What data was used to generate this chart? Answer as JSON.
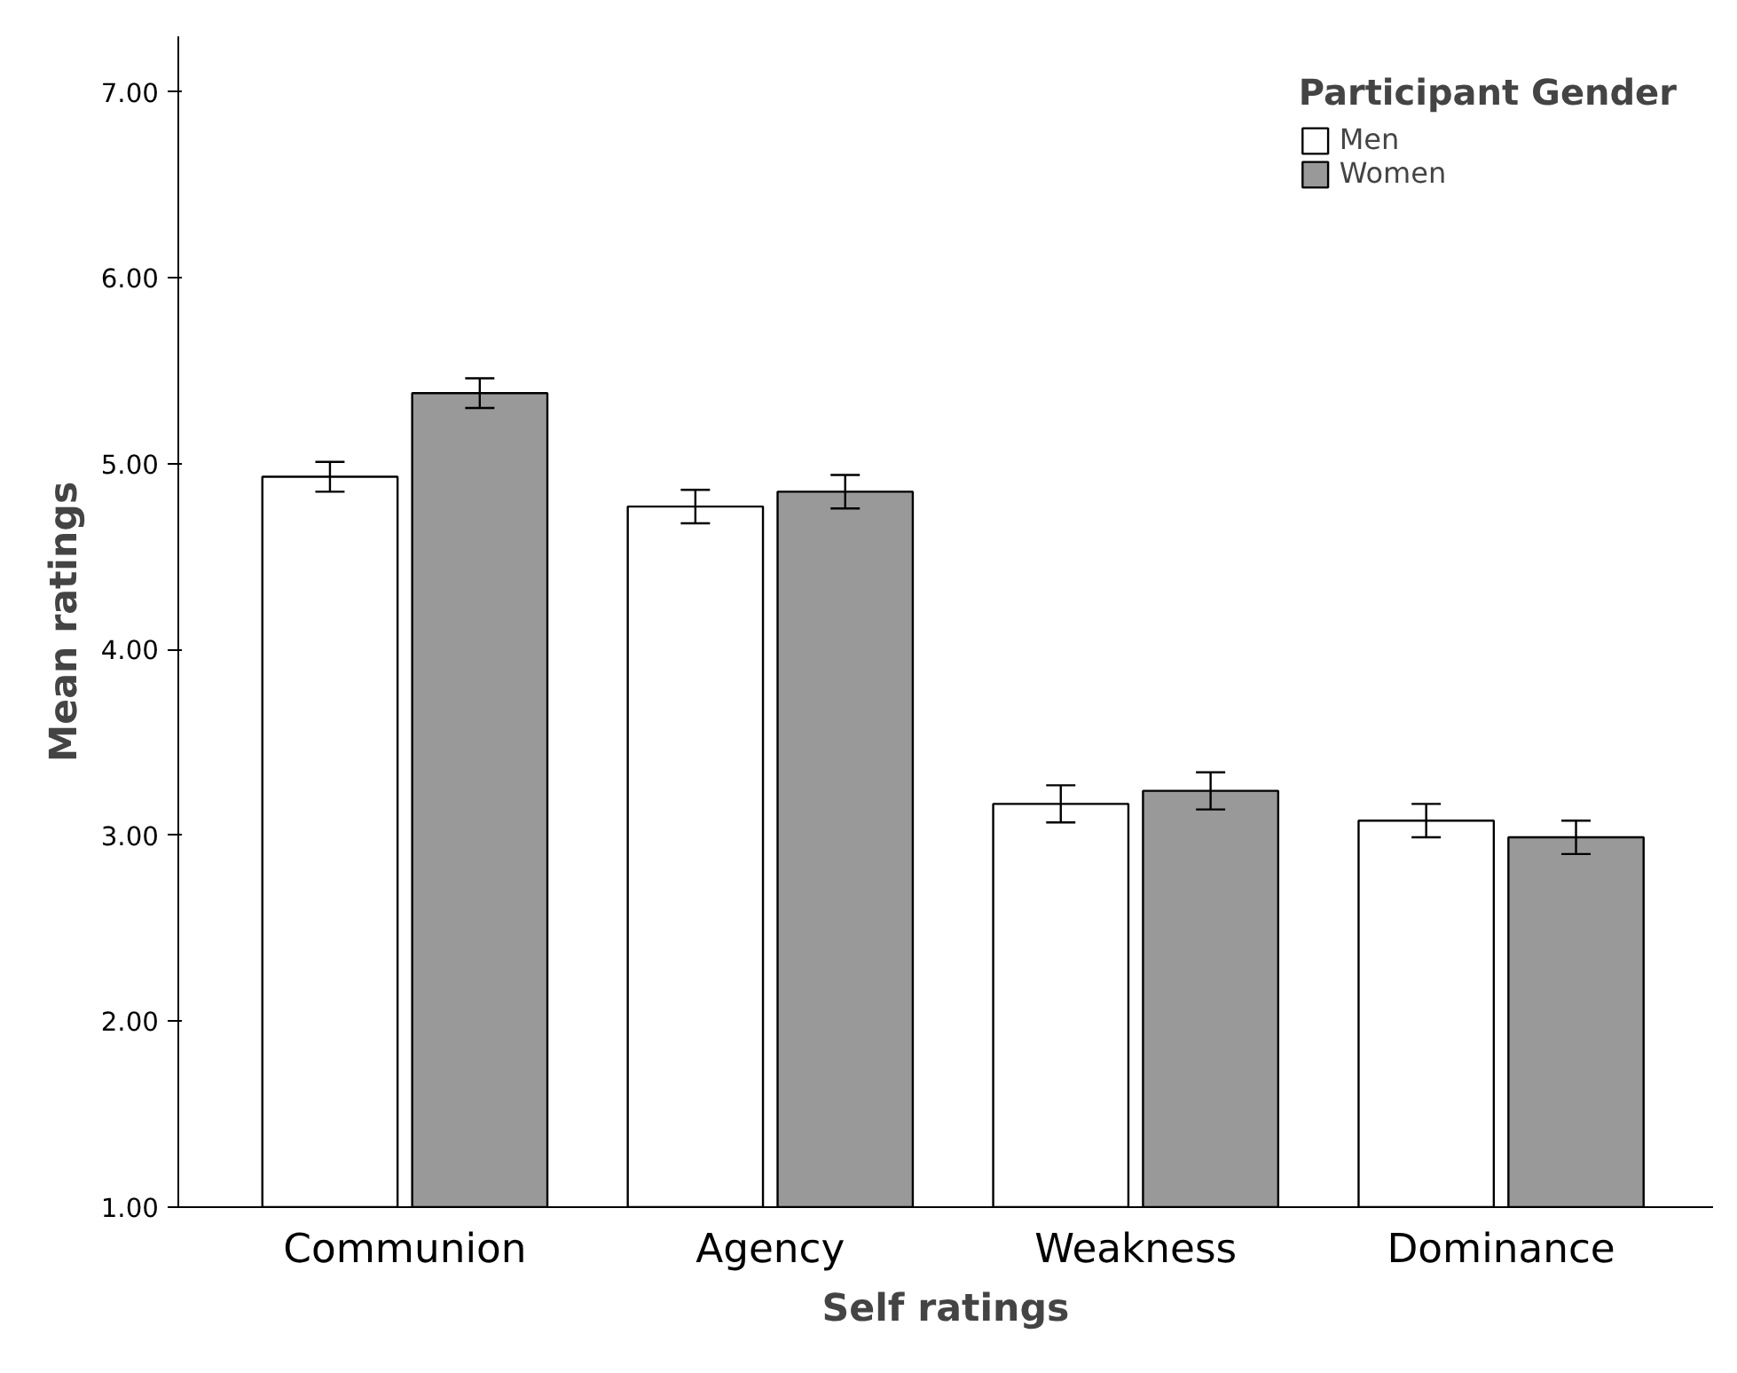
{
  "chart_data": {
    "type": "bar",
    "xlabel": "Self ratings",
    "ylabel": "Mean ratings",
    "legend_title": "Participant Gender",
    "categories": [
      "Communion",
      "Agency",
      "Weakness",
      "Dominance"
    ],
    "series": [
      {
        "name": "Men",
        "color": "#ffffff",
        "values": [
          4.93,
          4.77,
          3.17,
          3.08
        ],
        "errors": [
          0.08,
          0.09,
          0.1,
          0.09
        ]
      },
      {
        "name": "Women",
        "color": "#999999",
        "values": [
          5.38,
          4.85,
          3.24,
          2.99
        ],
        "errors": [
          0.08,
          0.09,
          0.1,
          0.09
        ]
      }
    ],
    "ylim": [
      1,
      7.3
    ],
    "yticks": [
      {
        "value": 1,
        "label": "1.00"
      },
      {
        "value": 2,
        "label": "2.00"
      },
      {
        "value": 3,
        "label": "3.00"
      },
      {
        "value": 4,
        "label": "4.00"
      },
      {
        "value": 5,
        "label": "5.00"
      },
      {
        "value": 6,
        "label": "6.00"
      },
      {
        "value": 7,
        "label": "7.00"
      }
    ],
    "grid": false,
    "legend": "top right"
  }
}
